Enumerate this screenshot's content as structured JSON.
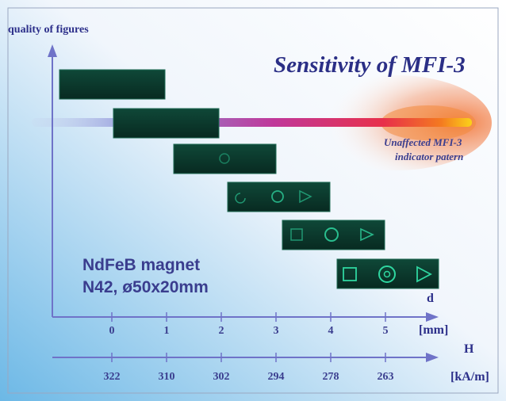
{
  "title": "Sensitivity of MFI-3",
  "y_axis_label": "quality of figures",
  "note_line1": "Unaffected MFI-3",
  "note_line2": "indicator patern",
  "magnet_line1": "NdFeB magnet",
  "magnet_line2": "N42, ø50x20mm",
  "d_axis": {
    "label": "d",
    "unit": "[mm]",
    "ticks": [
      "0",
      "1",
      "2",
      "3",
      "4",
      "5"
    ]
  },
  "h_axis": {
    "label": "H",
    "unit": "[kA/m]",
    "ticks": [
      "322",
      "310",
      "302",
      "294",
      "278",
      "263"
    ]
  },
  "colors": {
    "axis": "#6f73c8",
    "text": "#2c2f8a",
    "panel": "#0c3b2e",
    "pattern": "#2fd6a0"
  },
  "patterns": [
    {
      "d": 0,
      "shapes": []
    },
    {
      "d": 1,
      "shapes": []
    },
    {
      "d": 2,
      "shapes": [
        "circle"
      ]
    },
    {
      "d": 3,
      "shapes": [
        "circle-partial",
        "circle",
        "triangle"
      ]
    },
    {
      "d": 4,
      "shapes": [
        "square",
        "circle",
        "triangle"
      ]
    },
    {
      "d": 5,
      "shapes": [
        "square",
        "circle",
        "triangle"
      ]
    }
  ]
}
